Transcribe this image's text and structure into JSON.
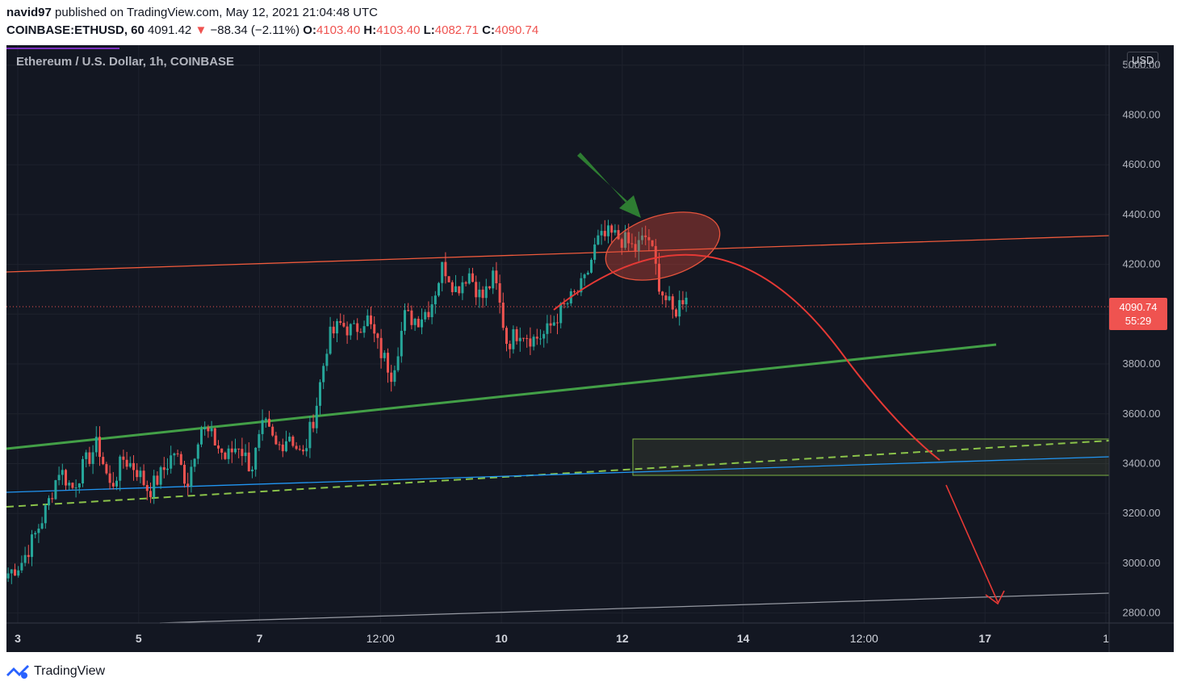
{
  "header": {
    "author": "navid97",
    "published_text": "published on TradingView.com, May 12, 2021 21:04:48 UTC",
    "symbol": "COINBASE:ETHUSD, 60",
    "price": "4091.42",
    "change_arrow": "▼",
    "change": "−88.34 (−2.11%)",
    "o_label": "O:",
    "o_value": "4103.40",
    "h_label": "H:",
    "h_value": "4103.40",
    "l_label": "L:",
    "l_value": "4082.71",
    "c_label": "C:",
    "c_value": "4090.74"
  },
  "chart_data": {
    "type": "candlestick",
    "title": "Ethereum / U.S. Dollar, 1h, COINBASE",
    "currency": "USD",
    "ylim": [
      2760,
      5080
    ],
    "y_ticks": [
      "5000.00",
      "4800.00",
      "4600.00",
      "4400.00",
      "4200.00",
      "4000.00",
      "3800.00",
      "3600.00",
      "3400.00",
      "3200.00",
      "3000.00",
      "2800.00"
    ],
    "x_ticks": [
      {
        "label": "3",
        "bold": true
      },
      {
        "label": "5",
        "bold": true
      },
      {
        "label": "7",
        "bold": true
      },
      {
        "label": "12:00",
        "bold": false
      },
      {
        "label": "10",
        "bold": true
      },
      {
        "label": "12",
        "bold": true
      },
      {
        "label": "14",
        "bold": true
      },
      {
        "label": "12:00",
        "bold": false
      },
      {
        "label": "17",
        "bold": true
      },
      {
        "label": "1",
        "bold": false
      }
    ],
    "last_price": "4090.74",
    "countdown": "55:29",
    "price_path": [
      2960,
      3000,
      3100,
      3220,
      3380,
      3300,
      3400,
      3480,
      3300,
      3420,
      3380,
      3290,
      3360,
      3450,
      3320,
      3550,
      3500,
      3420,
      3480,
      3380,
      3560,
      3460,
      3520,
      3420,
      3610,
      3900,
      3960,
      3930,
      3990,
      3860,
      3760,
      3990,
      3980,
      4030,
      4200,
      4100,
      4170,
      4060,
      4150,
      3880,
      3940,
      3900,
      3920,
      4000,
      4060,
      4120,
      4290,
      4320,
      4300,
      4260,
      4320,
      4100,
      4000,
      4090
    ],
    "colors": {
      "up": "#26a69a",
      "down": "#ef5350",
      "background": "#131722"
    }
  },
  "footer": {
    "brand": "TradingView"
  }
}
